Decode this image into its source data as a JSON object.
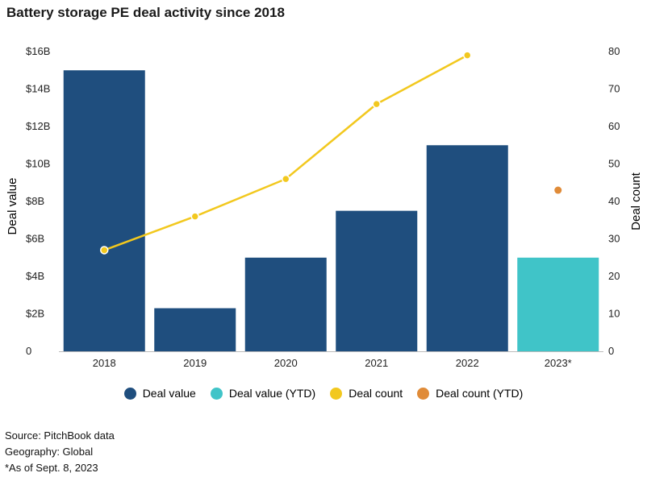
{
  "title": "Battery storage PE deal activity since 2018",
  "colors": {
    "deal_value": "#1f4e7e",
    "deal_value_ytd": "#40c4c8",
    "deal_count": "#f2c81e",
    "deal_count_ytd": "#e08b38"
  },
  "legend": [
    {
      "label": "Deal value",
      "color": "#1f4e7e"
    },
    {
      "label": "Deal value (YTD)",
      "color": "#40c4c8"
    },
    {
      "label": "Deal count",
      "color": "#f2c81e"
    },
    {
      "label": "Deal count (YTD)",
      "color": "#e08b38"
    }
  ],
  "chart_data": {
    "type": "bar",
    "categories": [
      "2018",
      "2019",
      "2020",
      "2021",
      "2022",
      "2023*"
    ],
    "series": [
      {
        "name": "Deal value",
        "axis": "left",
        "type": "bar",
        "values": [
          15.0,
          2.3,
          5.0,
          7.5,
          11.0,
          null
        ]
      },
      {
        "name": "Deal value (YTD)",
        "axis": "left",
        "type": "bar",
        "values": [
          null,
          null,
          null,
          null,
          null,
          5.0
        ]
      },
      {
        "name": "Deal count",
        "axis": "right",
        "type": "line",
        "values": [
          27,
          36,
          46,
          66,
          79,
          null
        ]
      },
      {
        "name": "Deal count (YTD)",
        "axis": "right",
        "type": "scatter",
        "values": [
          null,
          null,
          null,
          null,
          null,
          43
        ]
      }
    ],
    "ylabel": "Deal value",
    "y2label": "Deal count",
    "ylim": [
      0,
      16
    ],
    "y2lim": [
      0,
      80
    ],
    "yticks": [
      "0",
      "$2B",
      "$4B",
      "$6B",
      "$8B",
      "$10B",
      "$12B",
      "$14B",
      "$16B"
    ],
    "y2ticks": [
      "0",
      "10",
      "20",
      "30",
      "40",
      "50",
      "60",
      "70",
      "80"
    ],
    "grid": false,
    "legend_position": "bottom"
  },
  "footnotes": {
    "source": "Source: PitchBook data",
    "geography": "Geography: Global",
    "asof": "*As of Sept. 8, 2023"
  }
}
